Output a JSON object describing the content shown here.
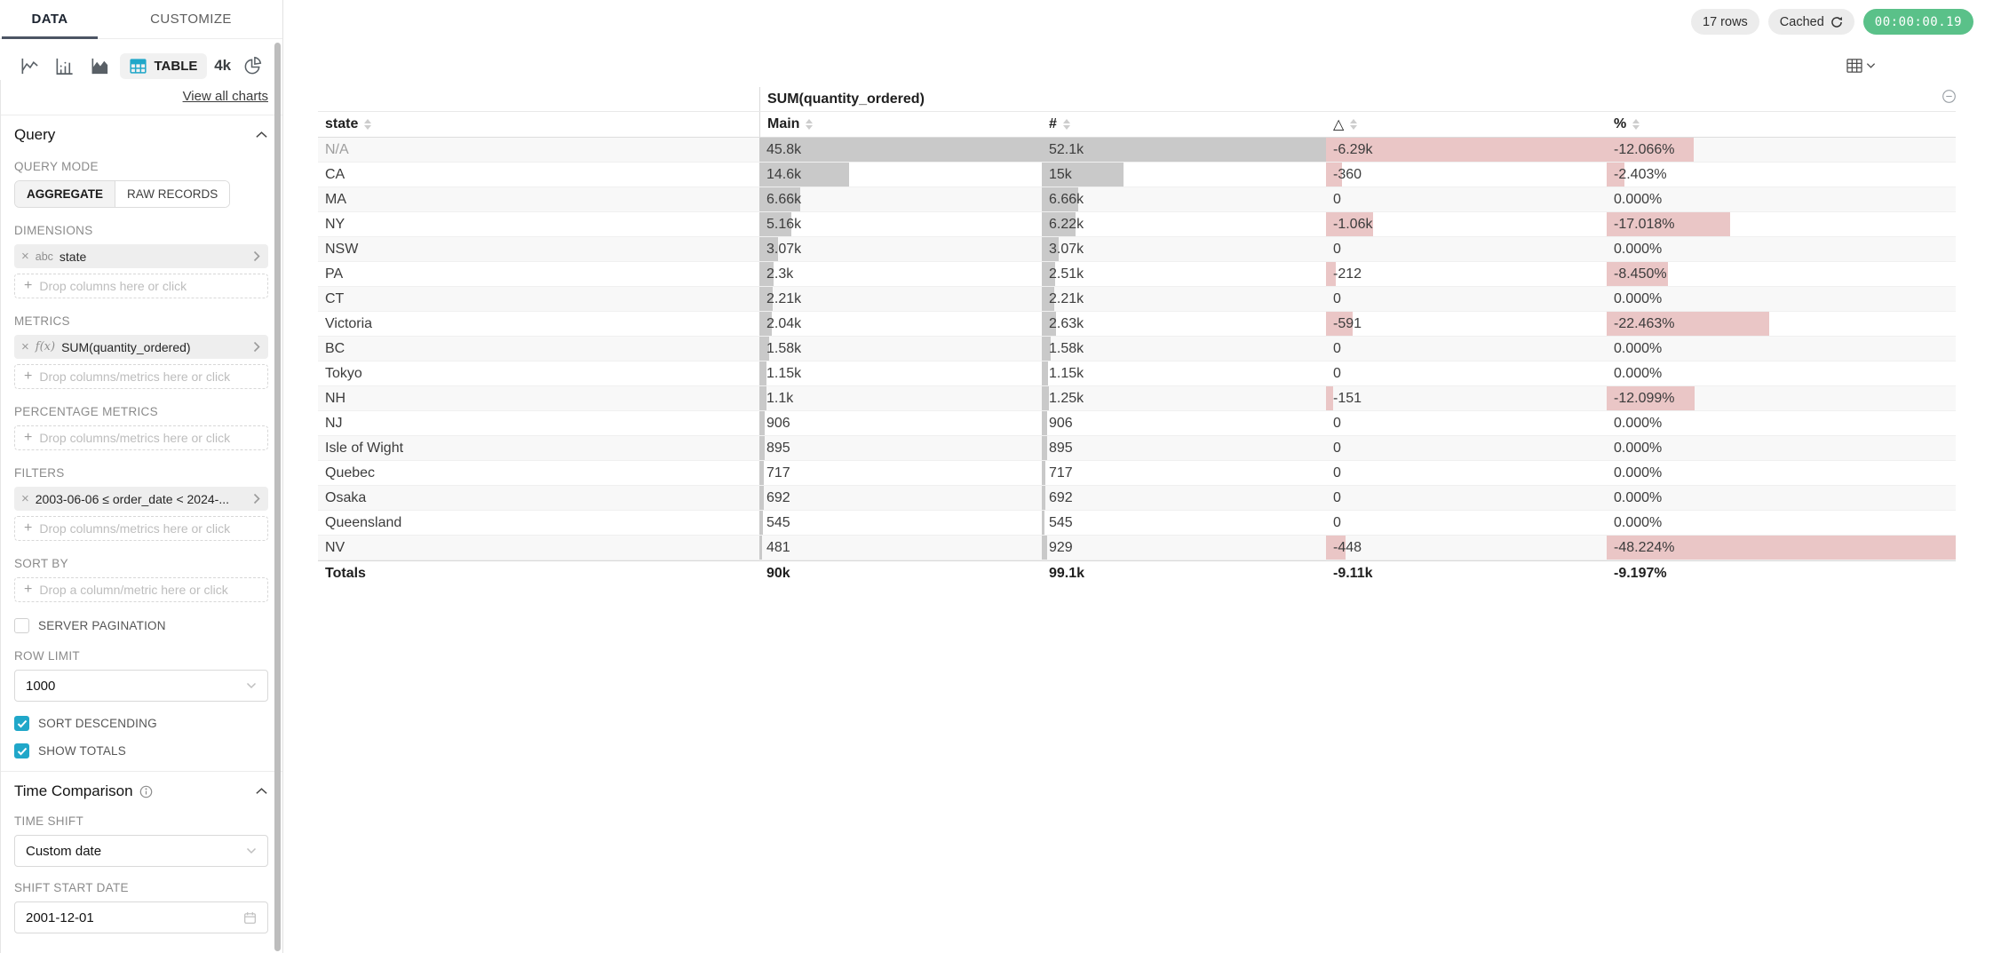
{
  "colors": {
    "accent": "#20a7c9",
    "timer_badge_bg": "#5ac189",
    "bar_positive": "#c9c9c9",
    "bar_negative": "#eac6c6",
    "tab_ink": "#4c5564"
  },
  "icons": {
    "viz": [
      "line-chart-icon",
      "bar-chart-icon",
      "area-chart-icon",
      "table-chart-icon",
      "big-number-icon",
      "pie-chart-icon"
    ],
    "close": "×",
    "delta_header": "△"
  },
  "sidebar": {
    "tabs": {
      "data": "DATA",
      "customize": "CUSTOMIZE"
    },
    "viz": {
      "table_label": "TABLE",
      "big_number_label": "4k",
      "view_all": "View all charts"
    },
    "query": {
      "title": "Query",
      "query_mode_label": "QUERY MODE",
      "aggregate": "AGGREGATE",
      "raw_records": "RAW RECORDS",
      "dimensions_label": "DIMENSIONS",
      "dimension_pill": {
        "type": "abc",
        "label": "state"
      },
      "drop_columns": "Drop columns here or click",
      "metrics_label": "METRICS",
      "metric_pill": {
        "type": "f(x)",
        "label": "SUM(quantity_ordered)"
      },
      "drop_columns_metrics": "Drop columns/metrics here or click",
      "percentage_metrics_label": "PERCENTAGE METRICS",
      "filters_label": "FILTERS",
      "filter_pill": {
        "label": "2003-06-06 ≤ order_date < 2024-..."
      },
      "sort_by_label": "SORT BY",
      "drop_column_metric": "Drop a column/metric here or click",
      "server_pagination_label": "SERVER PAGINATION",
      "server_pagination_checked": false,
      "row_limit_label": "ROW LIMIT",
      "row_limit_value": "1000",
      "sort_descending_label": "SORT DESCENDING",
      "sort_descending_checked": true,
      "show_totals_label": "SHOW TOTALS",
      "show_totals_checked": true
    },
    "time_comparison": {
      "title": "Time Comparison",
      "time_shift_label": "TIME SHIFT",
      "time_shift_value": "Custom date",
      "shift_start_label": "SHIFT START DATE",
      "shift_start_value": "2001-12-01"
    }
  },
  "header": {
    "rows_badge": "17 rows",
    "cached_badge": "Cached",
    "timer_badge": "00:00:00.19"
  },
  "chart_data": {
    "type": "table",
    "group_header": "SUM(quantity_ordered)",
    "columns": [
      "state",
      "Main",
      "#",
      "△",
      "%"
    ],
    "rows": [
      {
        "state": "N/A",
        "na": true,
        "main": "45.8k",
        "main_v": 45800,
        "num": "52.1k",
        "num_v": 52100,
        "delta": "-6.29k",
        "delta_v": -6290,
        "pct": "-12.066%",
        "pct_v": -12.066
      },
      {
        "state": "CA",
        "na": false,
        "main": "14.6k",
        "main_v": 14600,
        "num": "15k",
        "num_v": 15000,
        "delta": "-360",
        "delta_v": -360,
        "pct": "-2.403%",
        "pct_v": -2.403
      },
      {
        "state": "MA",
        "na": false,
        "main": "6.66k",
        "main_v": 6660,
        "num": "6.66k",
        "num_v": 6660,
        "delta": "0",
        "delta_v": 0,
        "pct": "0.000%",
        "pct_v": 0
      },
      {
        "state": "NY",
        "na": false,
        "main": "5.16k",
        "main_v": 5160,
        "num": "6.22k",
        "num_v": 6220,
        "delta": "-1.06k",
        "delta_v": -1060,
        "pct": "-17.018%",
        "pct_v": -17.018
      },
      {
        "state": "NSW",
        "na": false,
        "main": "3.07k",
        "main_v": 3070,
        "num": "3.07k",
        "num_v": 3070,
        "delta": "0",
        "delta_v": 0,
        "pct": "0.000%",
        "pct_v": 0
      },
      {
        "state": "PA",
        "na": false,
        "main": "2.3k",
        "main_v": 2300,
        "num": "2.51k",
        "num_v": 2510,
        "delta": "-212",
        "delta_v": -212,
        "pct": "-8.450%",
        "pct_v": -8.45
      },
      {
        "state": "CT",
        "na": false,
        "main": "2.21k",
        "main_v": 2210,
        "num": "2.21k",
        "num_v": 2210,
        "delta": "0",
        "delta_v": 0,
        "pct": "0.000%",
        "pct_v": 0
      },
      {
        "state": "Victoria",
        "na": false,
        "main": "2.04k",
        "main_v": 2040,
        "num": "2.63k",
        "num_v": 2630,
        "delta": "-591",
        "delta_v": -591,
        "pct": "-22.463%",
        "pct_v": -22.463
      },
      {
        "state": "BC",
        "na": false,
        "main": "1.58k",
        "main_v": 1580,
        "num": "1.58k",
        "num_v": 1580,
        "delta": "0",
        "delta_v": 0,
        "pct": "0.000%",
        "pct_v": 0
      },
      {
        "state": "Tokyo",
        "na": false,
        "main": "1.15k",
        "main_v": 1150,
        "num": "1.15k",
        "num_v": 1150,
        "delta": "0",
        "delta_v": 0,
        "pct": "0.000%",
        "pct_v": 0
      },
      {
        "state": "NH",
        "na": false,
        "main": "1.1k",
        "main_v": 1100,
        "num": "1.25k",
        "num_v": 1250,
        "delta": "-151",
        "delta_v": -151,
        "pct": "-12.099%",
        "pct_v": -12.099
      },
      {
        "state": "NJ",
        "na": false,
        "main": "906",
        "main_v": 906,
        "num": "906",
        "num_v": 906,
        "delta": "0",
        "delta_v": 0,
        "pct": "0.000%",
        "pct_v": 0
      },
      {
        "state": "Isle of Wight",
        "na": false,
        "main": "895",
        "main_v": 895,
        "num": "895",
        "num_v": 895,
        "delta": "0",
        "delta_v": 0,
        "pct": "0.000%",
        "pct_v": 0
      },
      {
        "state": "Quebec",
        "na": false,
        "main": "717",
        "main_v": 717,
        "num": "717",
        "num_v": 717,
        "delta": "0",
        "delta_v": 0,
        "pct": "0.000%",
        "pct_v": 0
      },
      {
        "state": "Osaka",
        "na": false,
        "main": "692",
        "main_v": 692,
        "num": "692",
        "num_v": 692,
        "delta": "0",
        "delta_v": 0,
        "pct": "0.000%",
        "pct_v": 0
      },
      {
        "state": "Queensland",
        "na": false,
        "main": "545",
        "main_v": 545,
        "num": "545",
        "num_v": 545,
        "delta": "0",
        "delta_v": 0,
        "pct": "0.000%",
        "pct_v": 0
      },
      {
        "state": "NV",
        "na": false,
        "main": "481",
        "main_v": 481,
        "num": "929",
        "num_v": 929,
        "delta": "-448",
        "delta_v": -448,
        "pct": "-48.224%",
        "pct_v": -48.224
      }
    ],
    "totals": {
      "label": "Totals",
      "main": "90k",
      "num": "99.1k",
      "delta": "-9.11k",
      "pct": "-9.197%"
    }
  }
}
